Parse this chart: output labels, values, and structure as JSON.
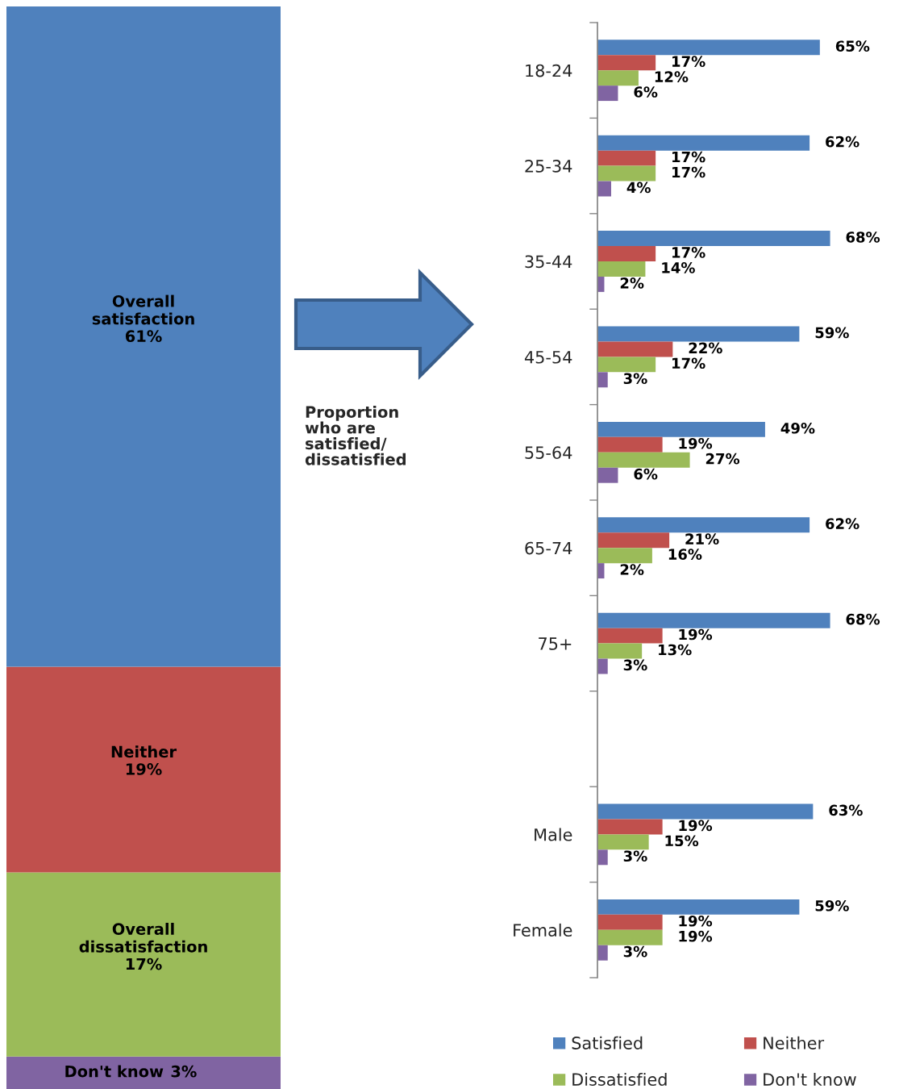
{
  "chart_data": [
    {
      "type": "bar",
      "stacked": true,
      "categories": [
        null
      ],
      "ylim": [
        0,
        100
      ],
      "tick_labels": false,
      "annotations": [
        "Proportion\nwho are\nsatisfied/\ndissatisfied"
      ],
      "series": [
        {
          "name": "Don't know",
          "color": "#8064a2",
          "values": [
            3
          ],
          "value_labels": [
            "3%"
          ]
        },
        {
          "name": "Overall dissatisfaction",
          "color": "#9bbb59",
          "values": [
            17
          ],
          "value_labels": [
            "17%"
          ]
        },
        {
          "name": "Neither",
          "color": "#c0504d",
          "values": [
            19
          ],
          "value_labels": [
            "19%"
          ]
        },
        {
          "name": "Overall satisfaction",
          "color": "#4f81bd",
          "values": [
            61
          ],
          "value_labels": [
            "61%"
          ]
        }
      ]
    },
    {
      "type": "bar",
      "orientation": "horizontal",
      "categories": [
        "18-24",
        "25-34",
        "35-44",
        "45-54",
        "55-64",
        "65-74",
        "75+",
        null,
        "Male",
        "Female"
      ],
      "tick_labels": "y",
      "legend": "bottom",
      "series": [
        {
          "name": "Satisfied",
          "color": "#4f81bd",
          "values": [
            65,
            62,
            68,
            59,
            49,
            62,
            68,
            null,
            63,
            59
          ],
          "value_labels": [
            "65%",
            "62%",
            "68%",
            "59%",
            "49%",
            "62%",
            "68%",
            null,
            "63%",
            "59%"
          ]
        },
        {
          "name": "Neither",
          "color": "#c0504d",
          "values": [
            17,
            17,
            17,
            22,
            19,
            21,
            19,
            null,
            19,
            19
          ],
          "value_labels": [
            "17%",
            "17%",
            "17%",
            "22%",
            "19%",
            "21%",
            "19%",
            null,
            "19%",
            "19%"
          ]
        },
        {
          "name": "Dissatisfied",
          "color": "#9bbb59",
          "values": [
            12,
            17,
            14,
            17,
            27,
            16,
            13,
            null,
            15,
            19
          ],
          "value_labels": [
            "12%",
            "17%",
            "14%",
            "17%",
            "27%",
            "16%",
            "13%",
            null,
            "15%",
            "19%"
          ]
        },
        {
          "name": "Don't know",
          "color": "#8064a2",
          "values": [
            6,
            4,
            2,
            3,
            6,
            2,
            3,
            null,
            3,
            3
          ],
          "value_labels": [
            "6%",
            "4%",
            "2%",
            "3%",
            "6%",
            "2%",
            "3%",
            null,
            "3%",
            "3%"
          ]
        }
      ]
    }
  ]
}
